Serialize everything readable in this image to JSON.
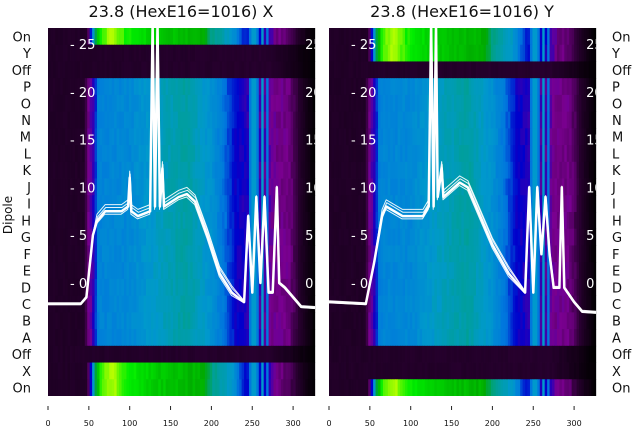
{
  "chart_data": {
    "type": "heatmap",
    "row_labels": [
      "On",
      "Y",
      "Off",
      "P",
      "O",
      "N",
      "M",
      "L",
      "K",
      "J",
      "I",
      "H",
      "G",
      "F",
      "E",
      "D",
      "C",
      "B",
      "A",
      "Off",
      "X",
      "On"
    ],
    "ylabel": "Dipole",
    "xlim": [
      0,
      327
    ],
    "x_ticks": [
      "0",
      "50",
      "100",
      "150",
      "200",
      "250",
      "300"
    ],
    "x_tick_values": [
      0,
      50,
      100,
      150,
      200,
      250,
      300
    ],
    "inner_ylim": [
      -11.8,
      26.7
    ],
    "inner_ticks": [
      "25",
      "20",
      "15",
      "10",
      "5",
      "0"
    ],
    "inner_tick_values": [
      25,
      20,
      15,
      10,
      5,
      0
    ],
    "colormap": "spectral",
    "profiles": {
      "active": [
        [
          0,
          0.06
        ],
        [
          44,
          0.06
        ],
        [
          50,
          0.15
        ],
        [
          56,
          0.2
        ],
        [
          62,
          0.33
        ],
        [
          100,
          0.34
        ],
        [
          140,
          0.4
        ],
        [
          170,
          0.43
        ],
        [
          200,
          0.36
        ],
        [
          215,
          0.3
        ],
        [
          230,
          0.22
        ],
        [
          245,
          0.2
        ],
        [
          270,
          0.17
        ],
        [
          275,
          0.15
        ],
        [
          295,
          0.14
        ],
        [
          310,
          0.06
        ],
        [
          327,
          0.0
        ]
      ],
      "on": [
        [
          0,
          0.06
        ],
        [
          48,
          0.06
        ],
        [
          52,
          0.2
        ],
        [
          58,
          0.5
        ],
        [
          65,
          0.68
        ],
        [
          80,
          0.74
        ],
        [
          95,
          0.66
        ],
        [
          130,
          0.6
        ],
        [
          190,
          0.56
        ],
        [
          200,
          0.46
        ],
        [
          225,
          0.38
        ],
        [
          240,
          0.24
        ],
        [
          270,
          0.2
        ],
        [
          280,
          0.14
        ],
        [
          295,
          0.12
        ],
        [
          310,
          0.05
        ],
        [
          327,
          0.0
        ]
      ],
      "off": [
        [
          0,
          0.06
        ],
        [
          270,
          0.07
        ],
        [
          300,
          0.04
        ],
        [
          327,
          0.0
        ]
      ]
    },
    "stripes": [
      [
        247,
        0.3
      ],
      [
        252,
        0.38
      ],
      [
        257,
        0.3
      ],
      [
        262,
        0.38
      ],
      [
        268,
        0.3
      ]
    ],
    "panels": [
      {
        "title": "23.8 (HexE16=1016) X",
        "row_types": [
          "on",
          "off",
          "off",
          "active",
          "active",
          "active",
          "active",
          "active",
          "active",
          "active",
          "active",
          "active",
          "active",
          "active",
          "active",
          "active",
          "active",
          "active",
          "active",
          "off",
          "on",
          "on"
        ],
        "trace": [
          [
            0,
            -2.2
          ],
          [
            40,
            -2.2
          ],
          [
            47,
            -1.5
          ],
          [
            55,
            5
          ],
          [
            60,
            6.5
          ],
          [
            70,
            7.5
          ],
          [
            90,
            7.5
          ],
          [
            98,
            8
          ],
          [
            100,
            11
          ],
          [
            102,
            7.5
          ],
          [
            110,
            7
          ],
          [
            125,
            7.5
          ],
          [
            128,
            27
          ],
          [
            131,
            8
          ],
          [
            134,
            27
          ],
          [
            137,
            8
          ],
          [
            140,
            12
          ],
          [
            142,
            8
          ],
          [
            160,
            9
          ],
          [
            170,
            9.3
          ],
          [
            180,
            8.5
          ],
          [
            195,
            5
          ],
          [
            210,
            1
          ],
          [
            225,
            -1
          ],
          [
            240,
            -2
          ],
          [
            245,
            7
          ],
          [
            250,
            -1
          ],
          [
            255,
            9
          ],
          [
            260,
            0
          ],
          [
            265,
            9
          ],
          [
            270,
            -1
          ],
          [
            275,
            -1
          ],
          [
            280,
            10
          ],
          [
            283,
            0
          ],
          [
            290,
            -0.5
          ],
          [
            300,
            -1.5
          ],
          [
            310,
            -2.5
          ],
          [
            327,
            -2.6
          ]
        ]
      },
      {
        "title": "23.8 (HexE16=1016) Y",
        "row_types": [
          "on",
          "on",
          "off",
          "active",
          "active",
          "active",
          "active",
          "active",
          "active",
          "active",
          "active",
          "active",
          "active",
          "active",
          "active",
          "active",
          "active",
          "active",
          "active",
          "off",
          "off",
          "on"
        ],
        "trace": [
          [
            0,
            -2
          ],
          [
            45,
            -2.2
          ],
          [
            55,
            2
          ],
          [
            65,
            7
          ],
          [
            70,
            8
          ],
          [
            90,
            7
          ],
          [
            115,
            7
          ],
          [
            122,
            8
          ],
          [
            125,
            27
          ],
          [
            128,
            8
          ],
          [
            131,
            27
          ],
          [
            133,
            9
          ],
          [
            138,
            12
          ],
          [
            140,
            9
          ],
          [
            160,
            10.5
          ],
          [
            170,
            10
          ],
          [
            180,
            8
          ],
          [
            200,
            4
          ],
          [
            220,
            1
          ],
          [
            240,
            -1
          ],
          [
            245,
            10
          ],
          [
            250,
            -1
          ],
          [
            255,
            10
          ],
          [
            260,
            3
          ],
          [
            265,
            9
          ],
          [
            270,
            3
          ],
          [
            275,
            -0.5
          ],
          [
            282,
            -0.5
          ],
          [
            285,
            10
          ],
          [
            288,
            -0.5
          ],
          [
            300,
            -2
          ],
          [
            310,
            -3
          ],
          [
            327,
            -3.1
          ]
        ]
      }
    ]
  }
}
